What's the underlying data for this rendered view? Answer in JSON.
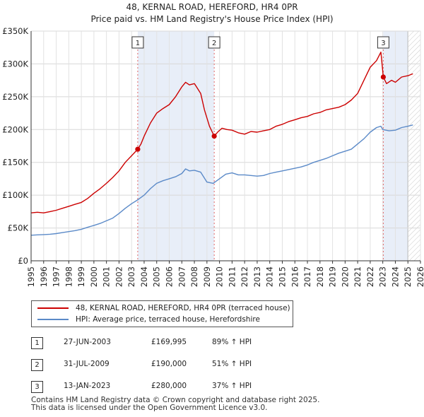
{
  "title": {
    "line1": "48, KERNAL ROAD, HEREFORD, HR4 0PR",
    "line2": "Price paid vs. HM Land Registry's House Price Index (HPI)"
  },
  "chart_data": {
    "type": "line",
    "title": "48, KERNAL ROAD, HEREFORD, HR4 0PR — Price paid vs. HM Land Registry's House Price Index (HPI)",
    "xlabel": "",
    "ylabel": "",
    "xlim": [
      1995,
      2026
    ],
    "ylim": [
      0,
      350000
    ],
    "x_ticks": [
      "1995",
      "1996",
      "1997",
      "1998",
      "1999",
      "2000",
      "2001",
      "2002",
      "2003",
      "2004",
      "2005",
      "2006",
      "2007",
      "2008",
      "2009",
      "2010",
      "2011",
      "2012",
      "2013",
      "2014",
      "2015",
      "2016",
      "2017",
      "2018",
      "2019",
      "2020",
      "2021",
      "2022",
      "2023",
      "2024",
      "2025",
      "2026"
    ],
    "y_ticks": [
      {
        "value": 0,
        "label": "£0"
      },
      {
        "value": 50000,
        "label": "£50K"
      },
      {
        "value": 100000,
        "label": "£100K"
      },
      {
        "value": 150000,
        "label": "£150K"
      },
      {
        "value": 200000,
        "label": "£200K"
      },
      {
        "value": 250000,
        "label": "£250K"
      },
      {
        "value": 300000,
        "label": "£300K"
      },
      {
        "value": 350000,
        "label": "£350K"
      }
    ],
    "grid": true,
    "series": [
      {
        "name": "48, KERNAL ROAD, HEREFORD, HR4 0PR (terraced house)",
        "color": "#cc0000",
        "x": [
          1995.0,
          1995.5,
          1996.0,
          1996.5,
          1997.0,
          1997.5,
          1998.0,
          1998.5,
          1999.0,
          1999.5,
          2000.0,
          2000.5,
          2001.0,
          2001.5,
          2002.0,
          2002.5,
          2003.0,
          2003.49,
          2003.75,
          2004.0,
          2004.5,
          2005.0,
          2005.5,
          2006.0,
          2006.5,
          2007.0,
          2007.3,
          2007.6,
          2008.0,
          2008.5,
          2008.8,
          2009.2,
          2009.58,
          2009.9,
          2010.2,
          2010.6,
          2011.0,
          2011.5,
          2012.0,
          2012.5,
          2013.0,
          2013.5,
          2014.0,
          2014.5,
          2015.0,
          2015.5,
          2016.0,
          2016.5,
          2017.0,
          2017.5,
          2018.0,
          2018.5,
          2019.0,
          2019.5,
          2020.0,
          2020.5,
          2021.0,
          2021.5,
          2022.0,
          2022.5,
          2022.85,
          2023.04,
          2023.3,
          2023.7,
          2024.0,
          2024.5,
          2025.0,
          2025.4
        ],
        "values": [
          73000,
          74000,
          73000,
          75000,
          77000,
          80000,
          83000,
          86000,
          89000,
          95000,
          103000,
          110000,
          118000,
          127000,
          137000,
          150000,
          160000,
          169995,
          178000,
          190000,
          210000,
          225000,
          232000,
          238000,
          250000,
          265000,
          272000,
          268000,
          270000,
          255000,
          230000,
          205000,
          190000,
          197000,
          202000,
          200000,
          199000,
          195000,
          193000,
          197000,
          196000,
          198000,
          200000,
          205000,
          208000,
          212000,
          215000,
          218000,
          220000,
          224000,
          226000,
          230000,
          232000,
          234000,
          238000,
          245000,
          255000,
          275000,
          295000,
          305000,
          318000,
          280000,
          270000,
          275000,
          272000,
          280000,
          282000,
          285000
        ]
      },
      {
        "name": "HPI: Average price, terraced house, Herefordshire",
        "color": "#5b8ac8",
        "x": [
          1995.0,
          1995.5,
          1996.0,
          1996.5,
          1997.0,
          1997.5,
          1998.0,
          1998.5,
          1999.0,
          1999.5,
          2000.0,
          2000.5,
          2001.0,
          2001.5,
          2002.0,
          2002.5,
          2003.0,
          2003.5,
          2004.0,
          2004.5,
          2005.0,
          2005.5,
          2006.0,
          2006.5,
          2007.0,
          2007.3,
          2007.6,
          2008.0,
          2008.5,
          2009.0,
          2009.5,
          2010.0,
          2010.5,
          2011.0,
          2011.5,
          2012.0,
          2012.5,
          2013.0,
          2013.5,
          2014.0,
          2014.5,
          2015.0,
          2015.5,
          2016.0,
          2016.5,
          2017.0,
          2017.5,
          2018.0,
          2018.5,
          2019.0,
          2019.5,
          2020.0,
          2020.5,
          2021.0,
          2021.5,
          2022.0,
          2022.5,
          2022.85,
          2023.0,
          2023.5,
          2024.0,
          2024.5,
          2025.0,
          2025.4
        ],
        "values": [
          39000,
          39500,
          40000,
          40500,
          41500,
          43000,
          44500,
          46000,
          48000,
          51000,
          54000,
          57000,
          61000,
          65000,
          72000,
          80000,
          87000,
          93000,
          100000,
          110000,
          118000,
          122000,
          125000,
          128000,
          133000,
          140000,
          137000,
          138000,
          135000,
          120000,
          118000,
          125000,
          132000,
          134000,
          131000,
          131000,
          130000,
          129000,
          130000,
          133000,
          135000,
          137000,
          139000,
          141000,
          143000,
          146000,
          150000,
          153000,
          156000,
          160000,
          164000,
          167000,
          170000,
          178000,
          186000,
          196000,
          203000,
          205000,
          200000,
          198000,
          199000,
          203000,
          205000,
          207000
        ]
      }
    ],
    "sales": [
      {
        "label": "1",
        "x": 2003.49,
        "value": 169995
      },
      {
        "label": "2",
        "x": 2009.58,
        "value": 190000
      },
      {
        "label": "3",
        "x": 2023.04,
        "value": 280000
      }
    ],
    "hatched_region": [
      2025.0,
      2026.0
    ]
  },
  "legend": {
    "property_label": "48, KERNAL ROAD, HEREFORD, HR4 0PR (terraced house)",
    "hpi_label": "HPI: Average price, terraced house, Herefordshire",
    "property_color": "#cc0000",
    "hpi_color": "#5b8ac8"
  },
  "sales_table": [
    {
      "badge": "1",
      "date": "27-JUN-2003",
      "price": "£169,995",
      "hpi": "89% ↑ HPI"
    },
    {
      "badge": "2",
      "date": "31-JUL-2009",
      "price": "£190,000",
      "hpi": "51% ↑ HPI"
    },
    {
      "badge": "3",
      "date": "13-JAN-2023",
      "price": "£280,000",
      "hpi": "37% ↑ HPI"
    }
  ],
  "footer": {
    "line1": "Contains HM Land Registry data © Crown copyright and database right 2025.",
    "line2": "This data is licensed under the Open Government Licence v3.0."
  }
}
